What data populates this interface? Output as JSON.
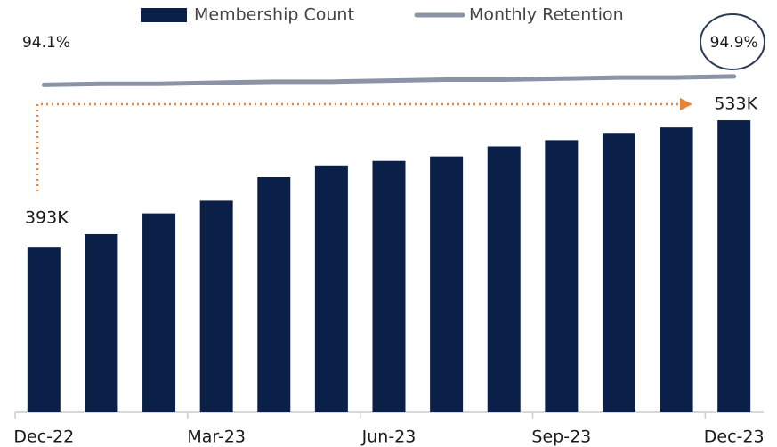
{
  "chart_data": {
    "type": "bar",
    "categories": [
      "Dec-22",
      null,
      null,
      "Mar-23",
      null,
      null,
      "Jun-23",
      null,
      null,
      "Sep-23",
      null,
      null,
      "Dec-23"
    ],
    "series": [
      {
        "name": "Membership Count",
        "color": "#0b2049",
        "values": [
          393,
          407,
          430,
          444,
          470,
          483,
          488,
          493,
          504,
          511,
          519,
          525,
          533
        ],
        "value_labels": [
          "393K",
          null,
          null,
          null,
          null,
          null,
          null,
          null,
          null,
          null,
          null,
          null,
          "533K"
        ]
      },
      {
        "name": "Monthly Retention",
        "color": "#8a94a6",
        "type": "line",
        "axis": "y2",
        "values": [
          94.1,
          94.2,
          94.2,
          94.3,
          94.4,
          94.4,
          94.5,
          94.6,
          94.6,
          94.7,
          94.8,
          94.8,
          94.9
        ],
        "value_labels": [
          "94.1%",
          null,
          null,
          null,
          null,
          null,
          null,
          null,
          null,
          null,
          null,
          null,
          "94.9%"
        ]
      }
    ],
    "ylim": [
      210,
      600
    ],
    "y2lim": [
      63,
      96.5
    ]
  }
}
